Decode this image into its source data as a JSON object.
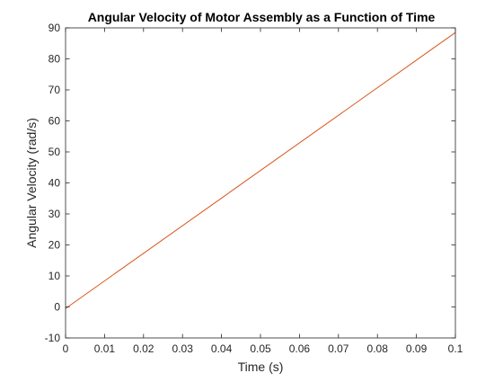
{
  "chart_data": {
    "type": "line",
    "title": "Angular Velocity of Motor Assembly as a Function of Time",
    "xlabel": "Time (s)",
    "ylabel": "Angular Velocity (rad/s)",
    "xlim": [
      0,
      0.1
    ],
    "ylim": [
      -10,
      90
    ],
    "xticks": [
      0,
      0.01,
      0.02,
      0.03,
      0.04,
      0.05,
      0.06,
      0.07,
      0.08,
      0.09,
      0.1
    ],
    "xtick_labels": [
      "0",
      "0.01",
      "0.02",
      "0.03",
      "0.04",
      "0.05",
      "0.06",
      "0.07",
      "0.08",
      "0.09",
      "0.1"
    ],
    "yticks": [
      -10,
      0,
      10,
      20,
      30,
      40,
      50,
      60,
      70,
      80,
      90
    ],
    "ytick_labels": [
      "-10",
      "0",
      "10",
      "20",
      "30",
      "40",
      "50",
      "60",
      "70",
      "80",
      "90"
    ],
    "grid": false,
    "box": true,
    "series": [
      {
        "color": "#D95319",
        "x": [
          0,
          0.1
        ],
        "y": [
          -0.5,
          88.5
        ]
      }
    ]
  }
}
